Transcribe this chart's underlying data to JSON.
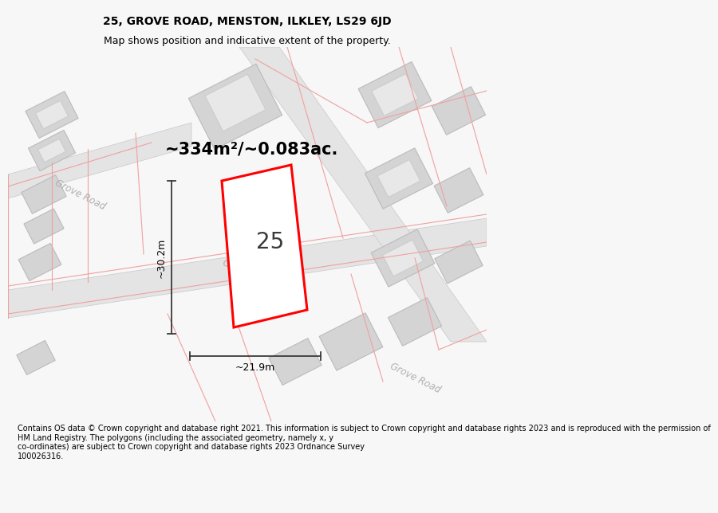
{
  "title": "25, GROVE ROAD, MENSTON, ILKLEY, LS29 6JD",
  "subtitle": "Map shows position and indicative extent of the property.",
  "footer": "Contains OS data © Crown copyright and database right 2021. This information is subject to Crown copyright and database rights 2023 and is reproduced with the permission of\nHM Land Registry. The polygons (including the associated geometry, namely x, y\nco-ordinates) are subject to Crown copyright and database rights 2023 Ordnance Survey\n100026316.",
  "area_label": "~334m²/~0.083ac.",
  "width_label": "~21.9m",
  "height_label": "~30.2m",
  "house_number": "25",
  "bg_color": "#f7f7f7",
  "map_bg": "#ffffff",
  "road_fill": "#e4e4e4",
  "road_border": "#c8c8c8",
  "plot_color": "#ff0000",
  "building_fill": "#d4d4d4",
  "building_border": "#bbbbbb",
  "building_inner_fill": "#e8e8e8",
  "building_inner_border": "#cccccc",
  "pink_line": "#f0a0a0",
  "dim_color": "#3a3a3a",
  "road_label_color": "#b0b0b0",
  "title_fontsize": 10,
  "subtitle_fontsize": 9,
  "footer_fontsize": 7,
  "area_fontsize": 15,
  "dim_fontsize": 9,
  "house_fontsize": 20
}
